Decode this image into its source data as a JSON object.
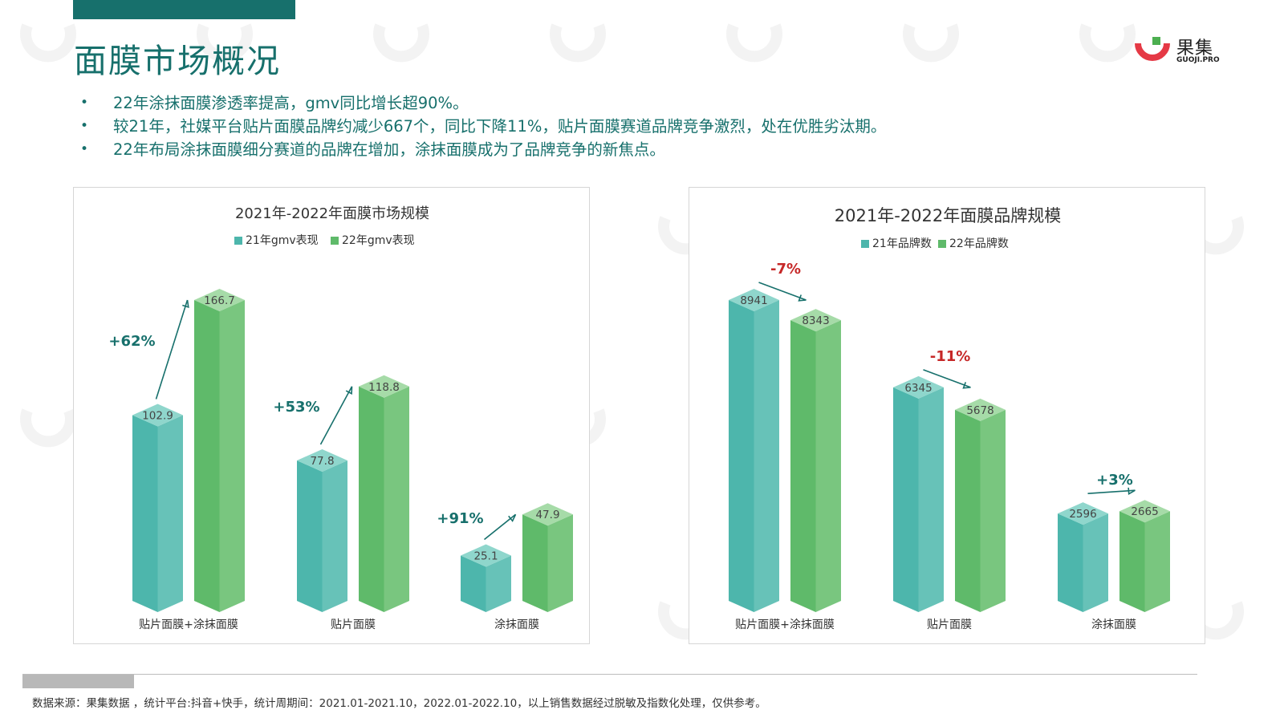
{
  "page": {
    "title": "面膜市场概况",
    "bullets": [
      "22年涂抹面膜渗透率提高，gmv同比增长超90%。",
      "较21年，社媒平台贴片面膜品牌约减少667个，同比下降11%，贴片面膜赛道品牌竞争激烈，处在优胜劣汰期。",
      "22年布局涂抹面膜细分赛道的品牌在增加，涂抹面膜成为了品牌竞争的新焦点。"
    ],
    "footnote": "数据来源：果集数据 ，统计平台:抖音+快手，统计周期间：2021.01-2021.10，2022.01-2022.10，以上销售数据经过脱敏及指数化处理，仅供参考。"
  },
  "logo": {
    "text": "果集",
    "sub": "GUOJI.PRO",
    "icon": "guoji-logo-icon"
  },
  "colors": {
    "brand": "#17706c",
    "teal": "#4db6ac",
    "green": "#66bb6a",
    "red": "#c62828",
    "growth": "#17706c"
  },
  "chart_data": [
    {
      "type": "bar",
      "title": "2021年-2022年面膜市场规模",
      "categories": [
        "贴片面膜+涂抹面膜",
        "贴片面膜",
        "涂抹面膜"
      ],
      "series": [
        {
          "name": "21年gmv表现",
          "values": [
            102.9,
            77.8,
            25.1
          ]
        },
        {
          "name": "22年gmv表现",
          "values": [
            166.7,
            118.8,
            47.9
          ]
        }
      ],
      "changes": [
        "+62%",
        "+53%",
        "+91%"
      ],
      "legend": "top-center"
    },
    {
      "type": "bar",
      "title": "2021年-2022年面膜品牌规模",
      "categories": [
        "贴片面膜+涂抹面膜",
        "贴片面膜",
        "涂抹面膜"
      ],
      "series": [
        {
          "name": "21年品牌数",
          "values": [
            8941,
            6345,
            2596
          ]
        },
        {
          "name": "22年品牌数",
          "values": [
            8343,
            5678,
            2665
          ]
        }
      ],
      "changes": [
        "-7%",
        "-11%",
        "+3%"
      ],
      "legend": "top-center"
    }
  ]
}
